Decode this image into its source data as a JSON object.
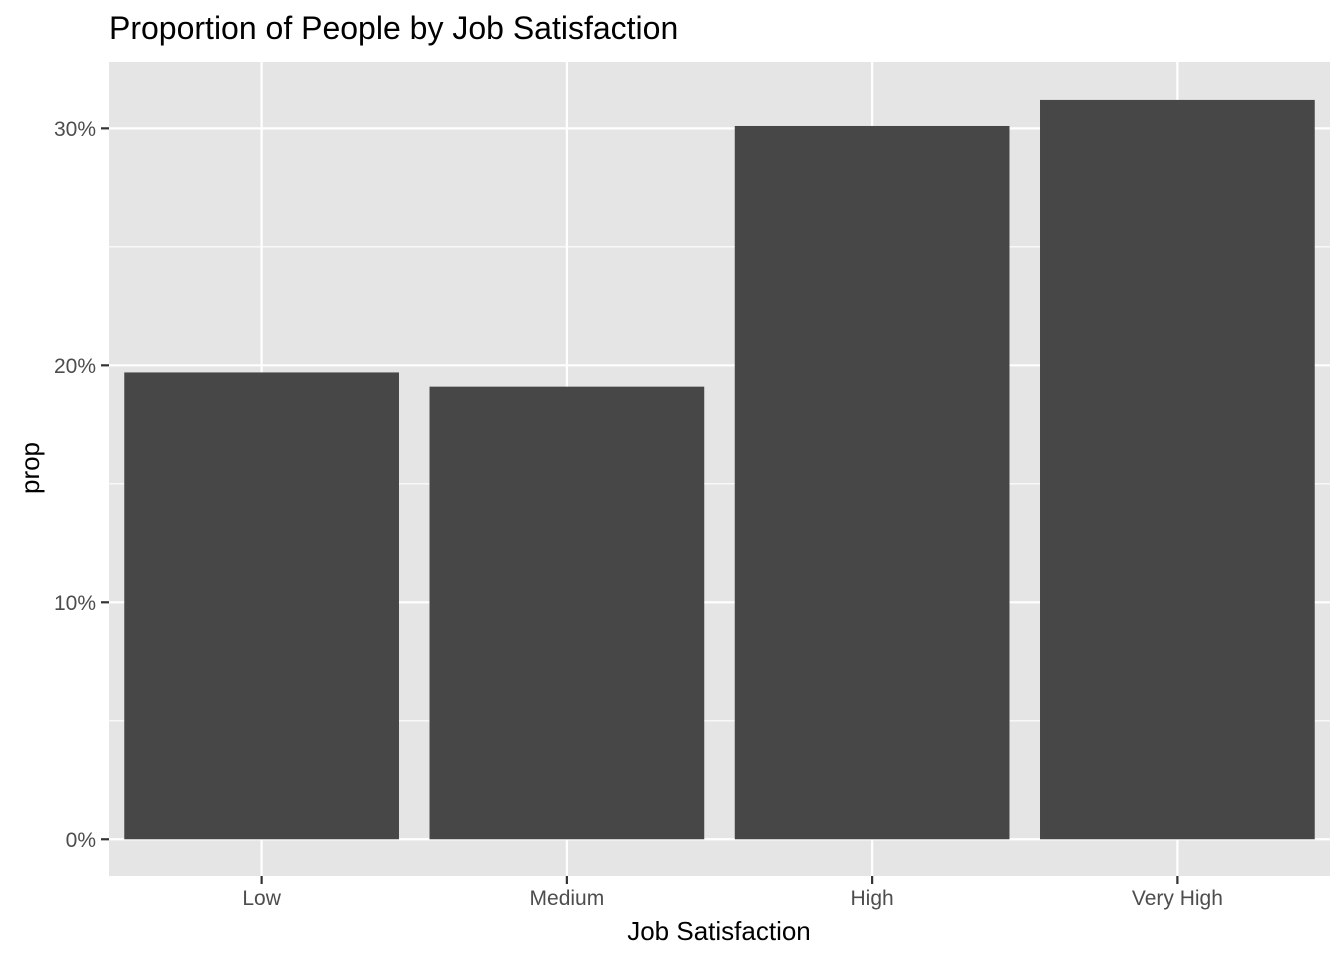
{
  "chart_data": {
    "type": "bar",
    "title": "Proportion of People by Job Satisfaction",
    "xlabel": "Job Satisfaction",
    "ylabel": "prop",
    "categories": [
      "Low",
      "Medium",
      "High",
      "Very High"
    ],
    "values": [
      0.197,
      0.191,
      0.301,
      0.312
    ],
    "ylim": [
      -0.0155,
      0.328
    ],
    "yticks": [
      0,
      0.1,
      0.2,
      0.3
    ],
    "ytick_labels": [
      "0%",
      "10%",
      "20%",
      "30%"
    ],
    "grid": true,
    "legend": "none",
    "colors": {
      "panel_background": "#e5e5e5",
      "grid": "#ffffff",
      "bar_fill": "#474747",
      "tick_text": "#4d4d4d",
      "tick_mark": "#333333"
    }
  }
}
